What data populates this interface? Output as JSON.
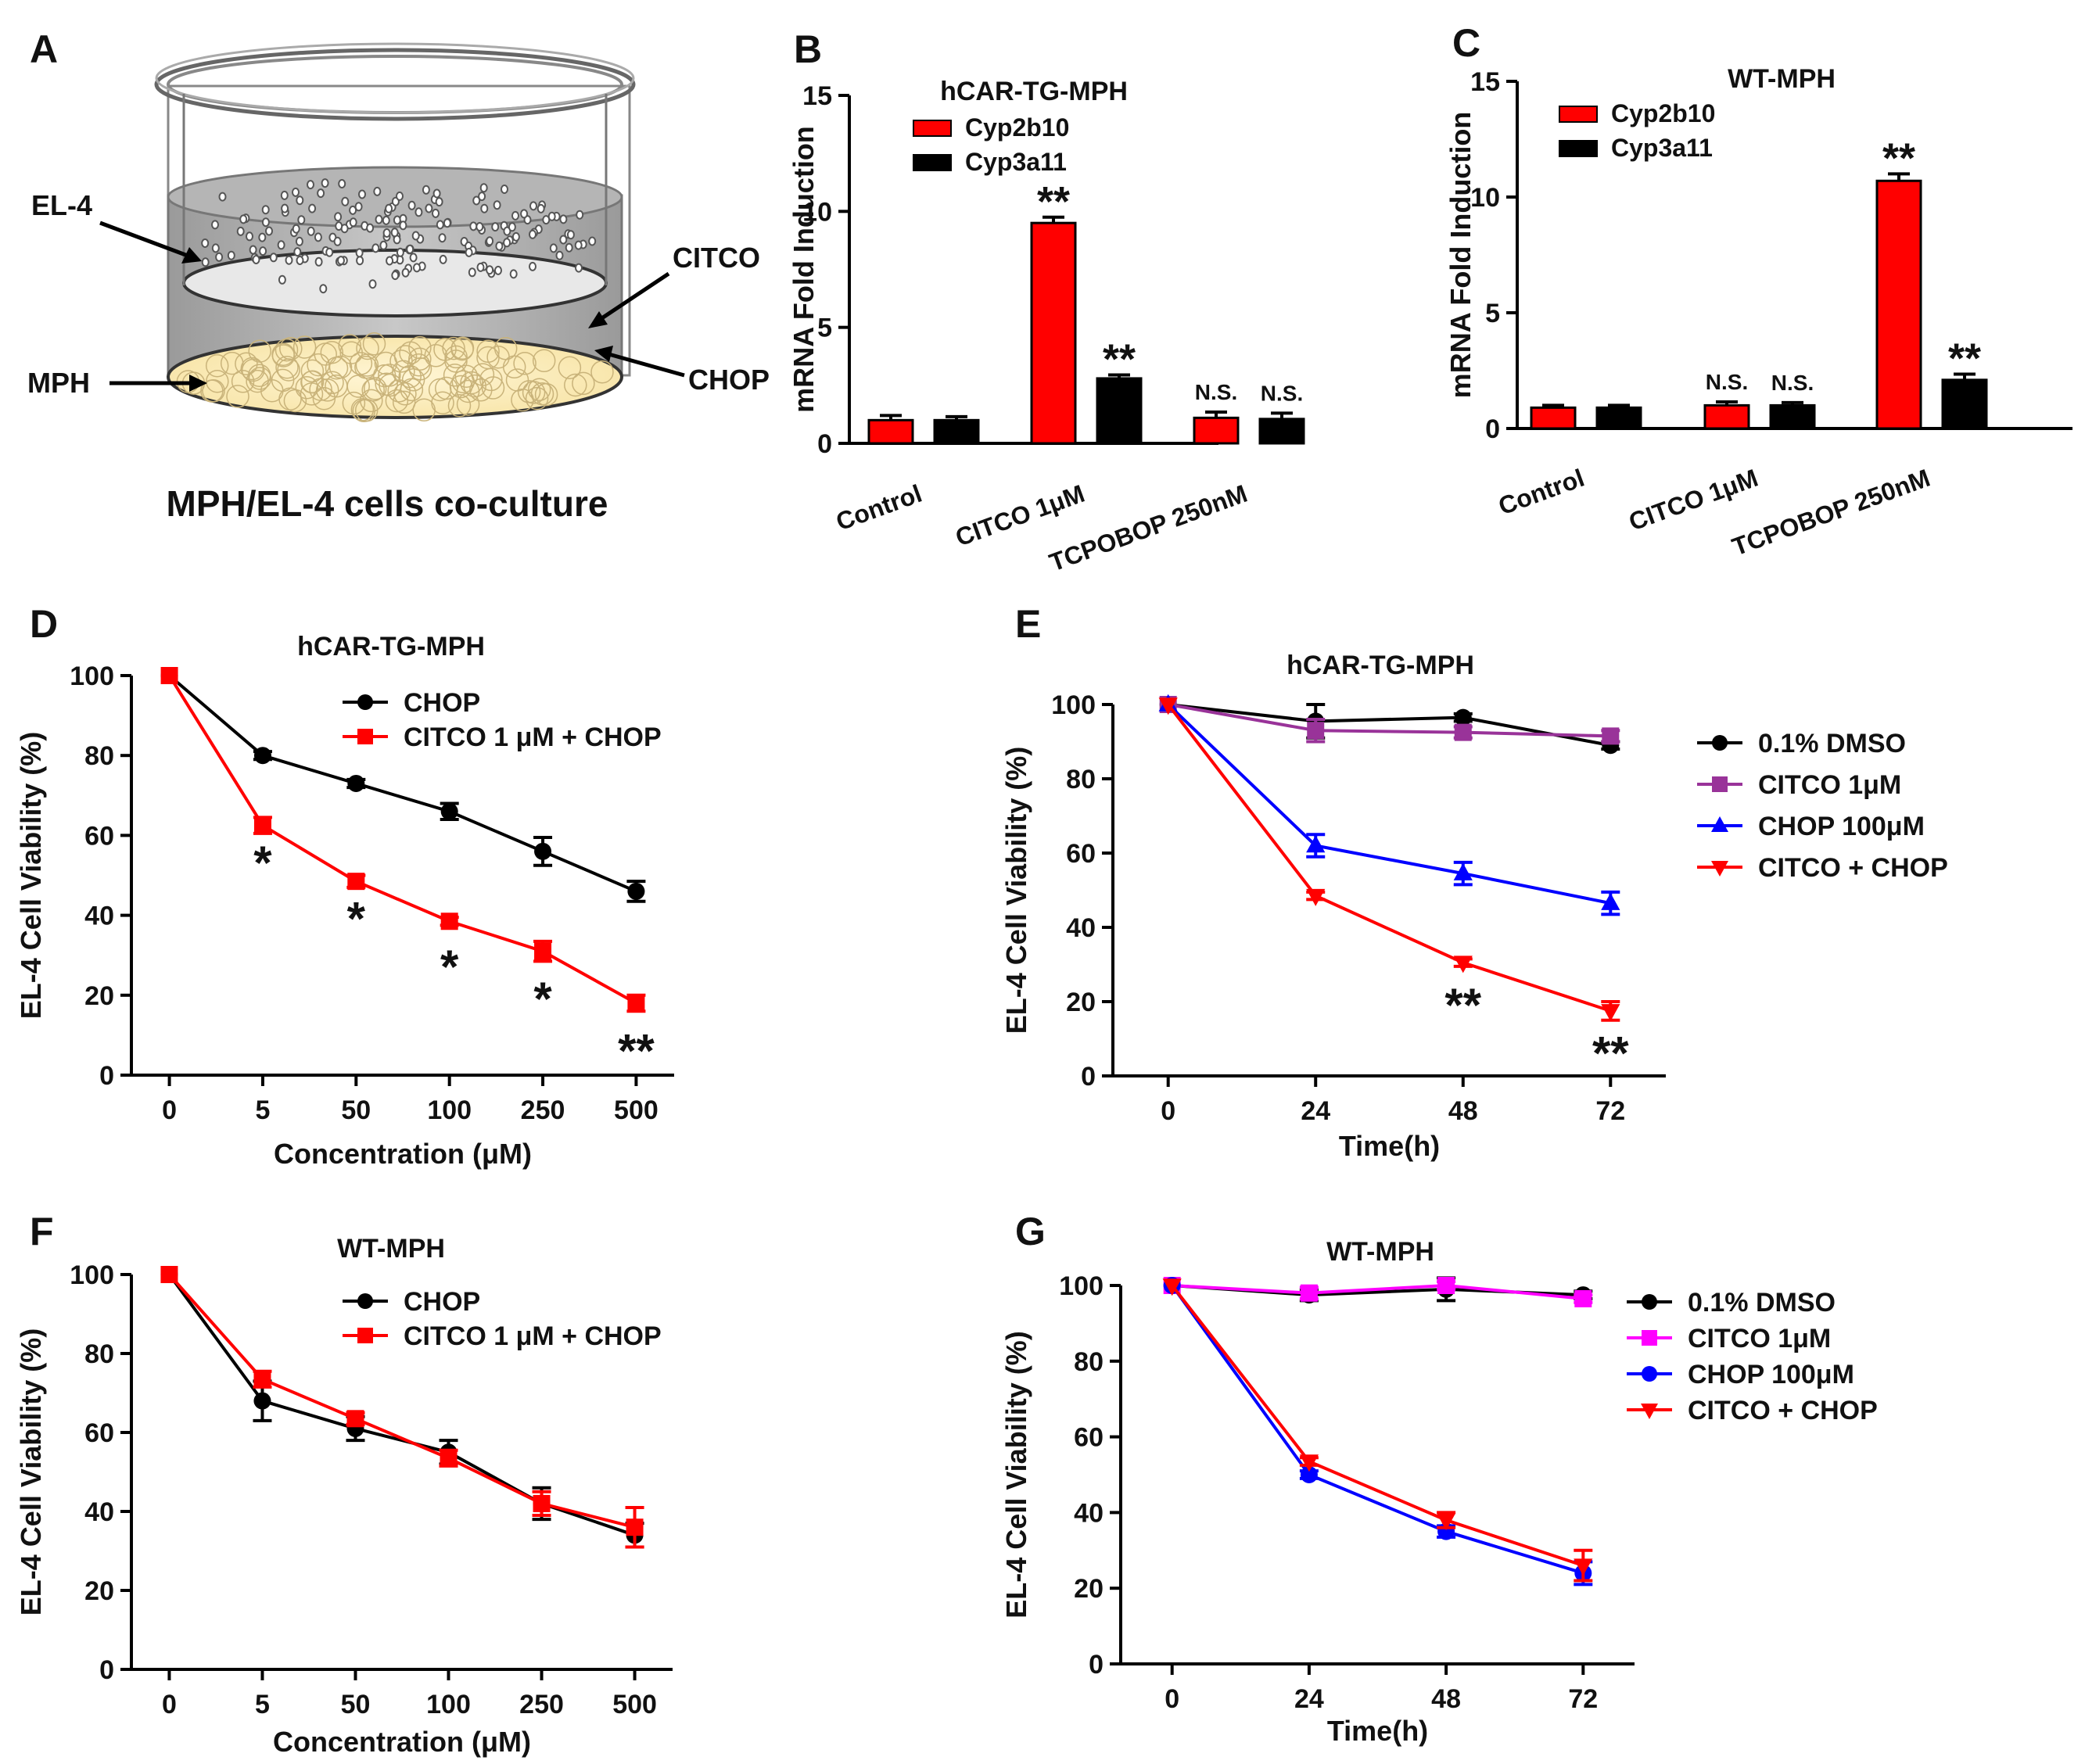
{
  "panel_a": {
    "letter": "A",
    "el4_label": "EL-4",
    "mph_label": "MPH",
    "citco_label": "CITCO",
    "chop_label": "CHOP",
    "caption": "MPH/EL-4 cells co-culture"
  },
  "chart_data": [
    {
      "panel": "B",
      "type": "bar",
      "title": "hCAR-TG-MPH",
      "ylabel": "mRNA Fold Induction",
      "xlabel": "",
      "ylim": [
        0,
        15
      ],
      "yticks": [
        0,
        5,
        10,
        15
      ],
      "categories": [
        "Control",
        "CITCO 1μM",
        "TCPOBOP 250nM"
      ],
      "series": [
        {
          "name": "Cyp2b10",
          "color": "#ff0000",
          "values": [
            1.0,
            9.5,
            1.1
          ],
          "errors": [
            0.2,
            0.25,
            0.25
          ]
        },
        {
          "name": "Cyp3a11",
          "color": "#000000",
          "values": [
            1.0,
            2.8,
            1.05
          ],
          "errors": [
            0.15,
            0.15,
            0.25
          ]
        }
      ],
      "annotations": [
        {
          "series": 0,
          "category": 1,
          "text": "**"
        },
        {
          "series": 1,
          "category": 1,
          "text": "**"
        },
        {
          "series": 0,
          "category": 2,
          "text": "N.S."
        },
        {
          "series": 1,
          "category": 2,
          "text": "N.S."
        }
      ]
    },
    {
      "panel": "C",
      "type": "bar",
      "title": "WT-MPH",
      "ylabel": "mRNA Fold Induction",
      "xlabel": "",
      "ylim": [
        0,
        15
      ],
      "yticks": [
        0,
        5,
        10,
        15
      ],
      "categories": [
        "Control",
        "CITCO 1μM",
        "TCPOBOP 250nM"
      ],
      "series": [
        {
          "name": "Cyp2b10",
          "color": "#ff0000",
          "values": [
            0.9,
            1.0,
            10.7
          ],
          "errors": [
            0.1,
            0.15,
            0.3
          ]
        },
        {
          "name": "Cyp3a11",
          "color": "#000000",
          "values": [
            0.9,
            1.0,
            2.1
          ],
          "errors": [
            0.1,
            0.12,
            0.25
          ]
        }
      ],
      "annotations": [
        {
          "series": 0,
          "category": 1,
          "text": "N.S."
        },
        {
          "series": 1,
          "category": 1,
          "text": "N.S."
        },
        {
          "series": 0,
          "category": 2,
          "text": "**"
        },
        {
          "series": 1,
          "category": 2,
          "text": "**"
        }
      ]
    },
    {
      "panel": "D",
      "type": "line",
      "title": "hCAR-TG-MPH",
      "xlabel": "Concentration (μM)",
      "ylabel": "EL-4 Cell Viability (%)",
      "ylim": [
        0,
        100
      ],
      "yticks": [
        0,
        20,
        40,
        60,
        80,
        100
      ],
      "categories": [
        "0",
        "5",
        "50",
        "100",
        "250",
        "500"
      ],
      "series": [
        {
          "name": "CHOP",
          "color": "#000000",
          "marker": "circle",
          "values": [
            100,
            80,
            73,
            66,
            56,
            46
          ],
          "errors": [
            0,
            1,
            1,
            2,
            3.5,
            2.5
          ]
        },
        {
          "name": "CITCO 1 μM + CHOP",
          "color": "#ff0000",
          "marker": "square",
          "values": [
            100,
            62.5,
            48.5,
            38.5,
            31,
            18
          ],
          "errors": [
            0,
            2,
            1.5,
            1,
            2.5,
            2
          ]
        }
      ],
      "annotations": [
        {
          "category": 1,
          "value": 53,
          "text": "*"
        },
        {
          "category": 2,
          "value": 39,
          "text": "*"
        },
        {
          "category": 3,
          "value": 27,
          "text": "*"
        },
        {
          "category": 4,
          "value": 19,
          "text": "*"
        },
        {
          "category": 5,
          "value": 6,
          "text": "**"
        }
      ]
    },
    {
      "panel": "E",
      "type": "line",
      "title": "hCAR-TG-MPH",
      "xlabel": "Time(h)",
      "ylabel": "EL-4 Cell Viability (%)",
      "ylim": [
        0,
        100
      ],
      "yticks": [
        0,
        20,
        40,
        60,
        80,
        100
      ],
      "categories": [
        "0",
        "24",
        "48",
        "72"
      ],
      "series": [
        {
          "name": "0.1% DMSO",
          "color": "#000000",
          "marker": "circle",
          "values": [
            100,
            95.5,
            96.5,
            89
          ],
          "errors": [
            0,
            4.5,
            1,
            1
          ]
        },
        {
          "name": "CITCO 1μM",
          "color": "#993399",
          "marker": "square",
          "values": [
            100,
            93,
            92.5,
            91.5
          ],
          "errors": [
            0,
            3,
            1.5,
            1.5
          ]
        },
        {
          "name": "CHOP 100μM",
          "color": "#0000ff",
          "marker": "triangle-up",
          "values": [
            100,
            62,
            54.5,
            46.5
          ],
          "errors": [
            0,
            3,
            3,
            3
          ]
        },
        {
          "name": "CITCO + CHOP",
          "color": "#ff0000",
          "marker": "triangle-down",
          "values": [
            100,
            48.5,
            30.5,
            17.5
          ],
          "errors": [
            0,
            1,
            1,
            2.5
          ]
        }
      ],
      "annotations": [
        {
          "category": 2,
          "value": 19,
          "text": "**"
        },
        {
          "category": 3,
          "value": 6,
          "text": "**"
        }
      ]
    },
    {
      "panel": "F",
      "type": "line",
      "title": "WT-MPH",
      "xlabel": "Concentration (μM)",
      "ylabel": "EL-4 Cell Viability (%)",
      "ylim": [
        0,
        100
      ],
      "yticks": [
        0,
        20,
        40,
        60,
        80,
        100
      ],
      "categories": [
        "0",
        "5",
        "50",
        "100",
        "250",
        "500"
      ],
      "series": [
        {
          "name": "CHOP",
          "color": "#000000",
          "marker": "circle",
          "values": [
            100,
            68,
            61,
            55,
            42,
            34
          ],
          "errors": [
            0,
            5,
            3,
            3,
            4,
            3
          ]
        },
        {
          "name": "CITCO 1 μM + CHOP",
          "color": "#ff0000",
          "marker": "square",
          "values": [
            100,
            73.5,
            63.5,
            53.5,
            42,
            36
          ],
          "errors": [
            0,
            2,
            1.5,
            2,
            3,
            5
          ]
        }
      ],
      "annotations": []
    },
    {
      "panel": "G",
      "type": "line",
      "title": "WT-MPH",
      "xlabel": "Time(h)",
      "ylabel": "EL-4 Cell Viability (%)",
      "ylim": [
        0,
        100
      ],
      "yticks": [
        0,
        20,
        40,
        60,
        80,
        100
      ],
      "categories": [
        "0",
        "24",
        "48",
        "72"
      ],
      "series": [
        {
          "name": "0.1%  DMSO",
          "color": "#000000",
          "marker": "circle",
          "values": [
            100,
            97.5,
            99,
            97.5
          ],
          "errors": [
            0,
            1.5,
            3,
            1
          ]
        },
        {
          "name": "CITCO 1μM",
          "color": "#ff00ff",
          "marker": "square",
          "values": [
            100,
            98,
            100,
            96.5
          ],
          "errors": [
            0,
            1.5,
            1,
            1
          ]
        },
        {
          "name": "CHOP 100μM",
          "color": "#0000ff",
          "marker": "circle",
          "values": [
            100,
            50,
            35,
            24
          ],
          "errors": [
            0,
            1,
            1.5,
            3
          ]
        },
        {
          "name": "CITCO + CHOP",
          "color": "#ff0000",
          "marker": "triangle-down",
          "values": [
            100,
            53.5,
            38,
            26
          ],
          "errors": [
            0,
            1,
            2,
            4
          ]
        }
      ],
      "annotations": []
    }
  ]
}
